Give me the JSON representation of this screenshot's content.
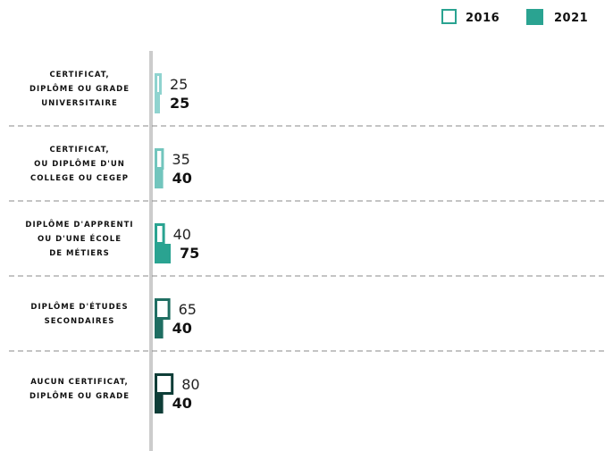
{
  "chart_data": {
    "type": "bar",
    "orientation": "horizontal",
    "categories": [
      [
        "CERTIFICAT,",
        "DIPLÔME OU GRADE",
        "UNIVERSITAIRE"
      ],
      [
        "CERTIFICAT,",
        "OU DIPLÔME D'UN",
        "COLLEGE OU CEGEP"
      ],
      [
        "DIPLÔME D'APPRENTI",
        "OU D'UNE ÉCOLE",
        "DE MÉTIERS"
      ],
      [
        "DIPLÔME D'ÉTUDES",
        "SECONDAIRES"
      ],
      [
        "AUCUN CERTIFICAT,",
        "DIPLÔME OU GRADE"
      ]
    ],
    "series": [
      {
        "name": "2016",
        "style": "outline",
        "values": [
          25,
          35,
          40,
          65,
          80
        ]
      },
      {
        "name": "2021",
        "style": "filled",
        "values": [
          25,
          40,
          75,
          40,
          40
        ]
      }
    ],
    "category_colors": [
      "#8fd3cf",
      "#72c5bd",
      "#2aa391",
      "#1f6e62",
      "#0e3d37"
    ],
    "axis_color": "#cccccc",
    "separator": "dashed",
    "legend_position": "top-right"
  }
}
